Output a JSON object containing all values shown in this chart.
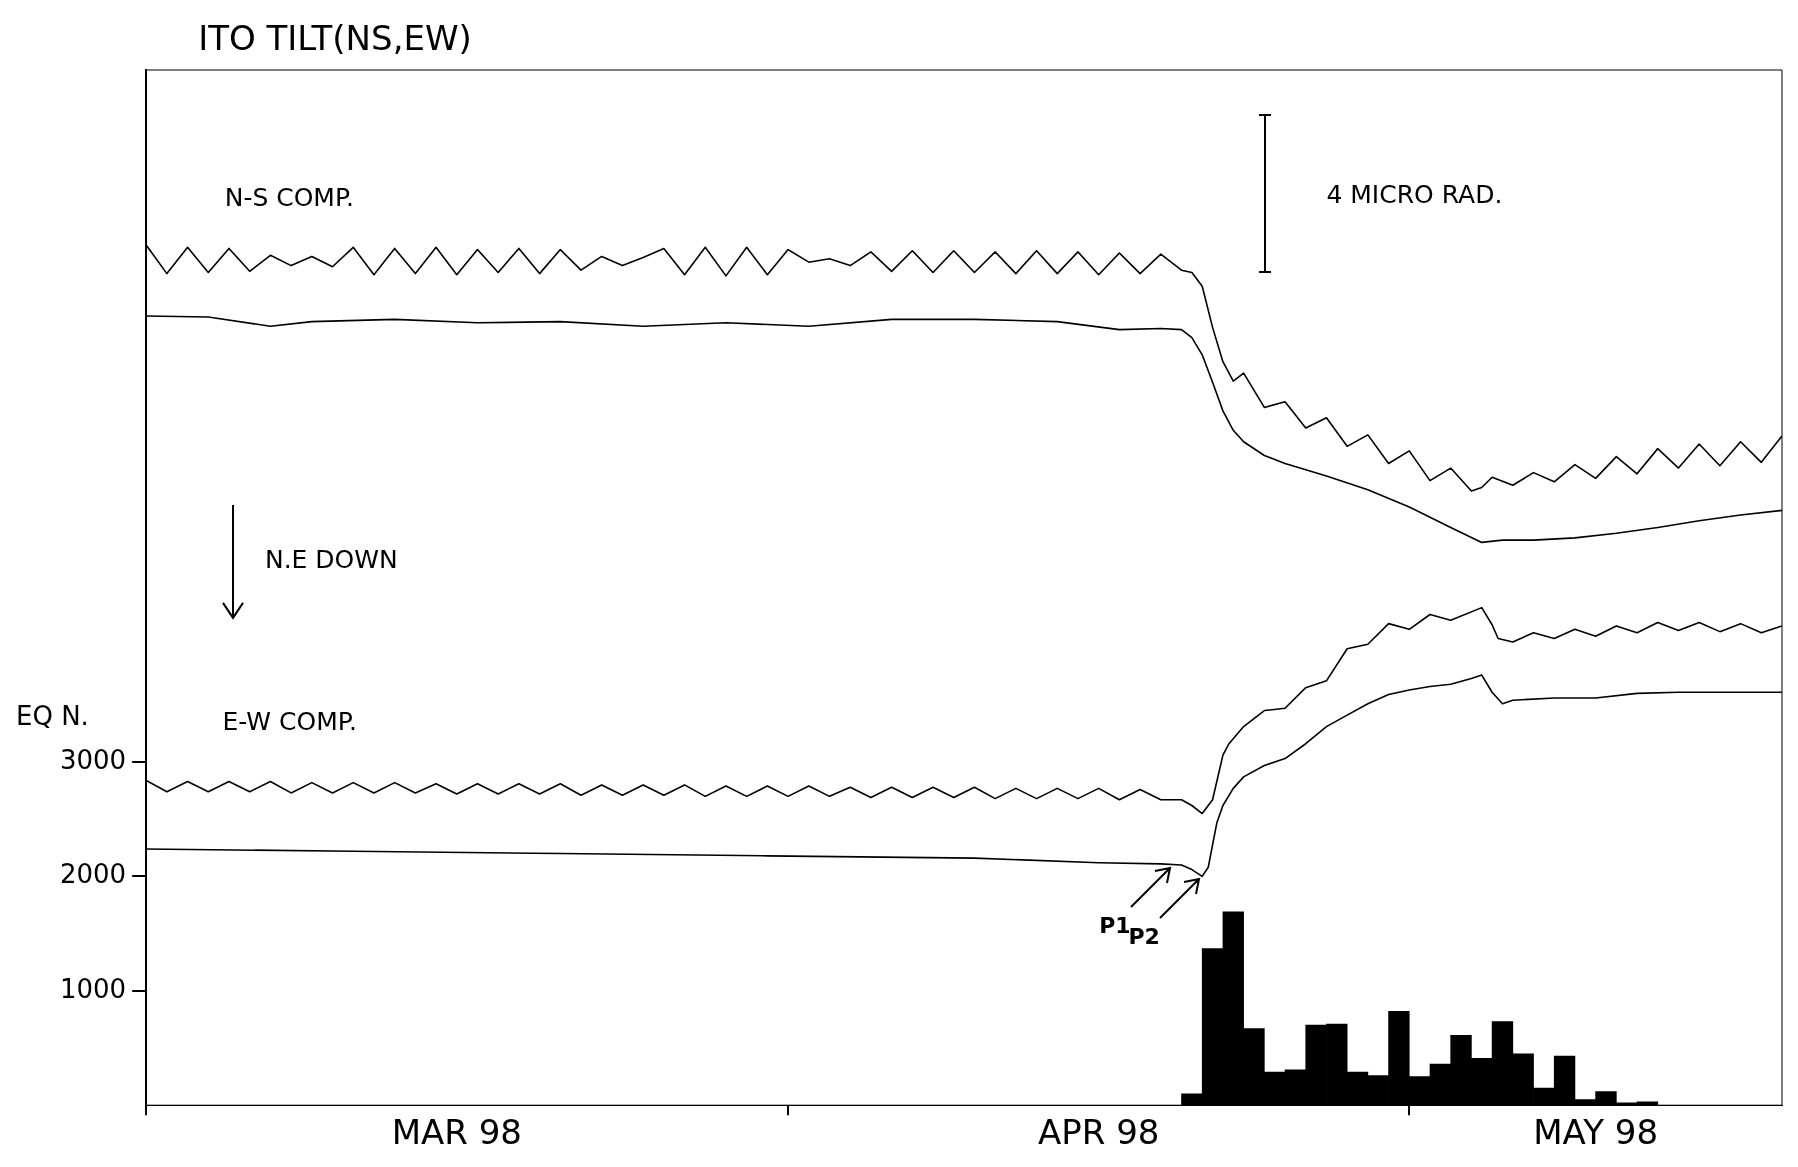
{
  "chart_data": {
    "type": "line",
    "title": "ITO TILT(NS,EW)",
    "ylabel": "EQ N.",
    "xlim": [
      "1998-03-01",
      "1998-05-19"
    ],
    "xticks": [
      {
        "value": "1998-03-01",
        "label": null
      },
      {
        "value": "1998-03-16",
        "label": "MAR 98"
      },
      {
        "value": "1998-04-01",
        "label": null
      },
      {
        "value": "1998-04-16",
        "label": "APR 98"
      },
      {
        "value": "1998-05-01",
        "label": null
      },
      {
        "value": "1998-05-10",
        "label": "MAY 98"
      }
    ],
    "ylim": [
      0,
      9050
    ],
    "yticks": [
      1000,
      2000,
      3000
    ],
    "grid": false,
    "legend": false,
    "annotations": [
      "N-S COMP.",
      "4 MICRO RAD.",
      "N.E DOWN",
      "E-W COMP.",
      {
        "text": "P1",
        "x": "1998-04-19T14:00",
        "y": 2100
      },
      {
        "text": "P2",
        "x": "1998-04-21",
        "y": 2000
      }
    ],
    "series": [
      {
        "color": "#000000",
        "x": [
          "1998-03-01",
          "1998-03-02",
          "1998-03-03",
          "1998-03-04",
          "1998-03-05",
          "1998-03-06",
          "1998-03-07",
          "1998-03-08",
          "1998-03-09",
          "1998-03-10",
          "1998-03-11",
          "1998-03-12",
          "1998-03-13",
          "1998-03-14",
          "1998-03-15",
          "1998-03-16",
          "1998-03-17",
          "1998-03-18",
          "1998-03-19",
          "1998-03-20",
          "1998-03-21",
          "1998-03-22",
          "1998-03-23",
          "1998-03-24",
          "1998-03-25",
          "1998-03-26",
          "1998-03-27",
          "1998-03-28",
          "1998-03-29",
          "1998-03-30",
          "1998-03-31",
          "1998-04-01",
          "1998-04-02",
          "1998-04-03",
          "1998-04-04",
          "1998-04-05",
          "1998-04-06",
          "1998-04-07",
          "1998-04-08",
          "1998-04-09",
          "1998-04-10",
          "1998-04-11",
          "1998-04-12",
          "1998-04-13",
          "1998-04-14",
          "1998-04-15",
          "1998-04-16",
          "1998-04-17",
          "1998-04-18",
          "1998-04-19",
          "1998-04-20",
          "1998-04-20T12:00",
          "1998-04-21",
          "1998-04-21T12:00",
          "1998-04-22",
          "1998-04-22T12:00",
          "1998-04-23",
          "1998-04-24",
          "1998-04-25",
          "1998-04-26",
          "1998-04-27",
          "1998-04-28",
          "1998-04-29",
          "1998-04-30",
          "1998-05-01",
          "1998-05-02",
          "1998-05-03",
          "1998-05-04",
          "1998-05-04T12:00",
          "1998-05-05",
          "1998-05-06",
          "1998-05-07",
          "1998-05-08",
          "1998-05-09",
          "1998-05-10",
          "1998-05-11",
          "1998-05-12",
          "1998-05-13",
          "1998-05-14",
          "1998-05-15",
          "1998-05-16",
          "1998-05-17",
          "1998-05-18",
          "1998-05-19"
        ],
        "values": [
          7520,
          7270,
          7500,
          7280,
          7490,
          7290,
          7430,
          7340,
          7420,
          7330,
          7500,
          7260,
          7490,
          7270,
          7500,
          7260,
          7480,
          7280,
          7490,
          7270,
          7480,
          7300,
          7420,
          7340,
          7410,
          7490,
          7260,
          7500,
          7250,
          7500,
          7260,
          7480,
          7370,
          7400,
          7340,
          7460,
          7290,
          7470,
          7280,
          7470,
          7280,
          7460,
          7270,
          7470,
          7270,
          7460,
          7260,
          7450,
          7270,
          7440,
          7300,
          7280,
          7160,
          6800,
          6500,
          6330,
          6400,
          6100,
          6150,
          5920,
          6010,
          5760,
          5860,
          5610,
          5720,
          5460,
          5570,
          5370,
          5400,
          5490,
          5420,
          5530,
          5450,
          5600,
          5480,
          5670,
          5520,
          5740,
          5570,
          5780,
          5590,
          5800,
          5620,
          5850
        ]
      },
      {
        "color": "#000000",
        "x": [
          "1998-03-01",
          "1998-03-04",
          "1998-03-07",
          "1998-03-09",
          "1998-03-13",
          "1998-03-17",
          "1998-03-21",
          "1998-03-25",
          "1998-03-29",
          "1998-04-02",
          "1998-04-06",
          "1998-04-10",
          "1998-04-14",
          "1998-04-17",
          "1998-04-19",
          "1998-04-20",
          "1998-04-20T12:00",
          "1998-04-21",
          "1998-04-21T12:00",
          "1998-04-22",
          "1998-04-22T12:00",
          "1998-04-23",
          "1998-04-24",
          "1998-04-25",
          "1998-04-27",
          "1998-04-29",
          "1998-05-01",
          "1998-05-03",
          "1998-05-04T12:00",
          "1998-05-05T12:00",
          "1998-05-07",
          "1998-05-09",
          "1998-05-11",
          "1998-05-13",
          "1998-05-15",
          "1998-05-17",
          "1998-05-19"
        ],
        "values": [
          6900,
          6890,
          6810,
          6850,
          6870,
          6840,
          6850,
          6810,
          6840,
          6810,
          6870,
          6870,
          6850,
          6780,
          6790,
          6780,
          6710,
          6560,
          6320,
          6070,
          5900,
          5800,
          5680,
          5610,
          5500,
          5380,
          5230,
          5050,
          4920,
          4940,
          4940,
          4960,
          5000,
          5050,
          5110,
          5160,
          5200
        ]
      },
      {
        "color": "#000000",
        "x": [
          "1998-03-01",
          "1998-03-02",
          "1998-03-03",
          "1998-03-04",
          "1998-03-05",
          "1998-03-06",
          "1998-03-07",
          "1998-03-08",
          "1998-03-09",
          "1998-03-10",
          "1998-03-11",
          "1998-03-12",
          "1998-03-13",
          "1998-03-14",
          "1998-03-15",
          "1998-03-16",
          "1998-03-17",
          "1998-03-18",
          "1998-03-19",
          "1998-03-20",
          "1998-03-21",
          "1998-03-22",
          "1998-03-23",
          "1998-03-24",
          "1998-03-25",
          "1998-03-26",
          "1998-03-27",
          "1998-03-28",
          "1998-03-29",
          "1998-03-30",
          "1998-03-31",
          "1998-04-01",
          "1998-04-02",
          "1998-04-03",
          "1998-04-04",
          "1998-04-05",
          "1998-04-06",
          "1998-04-07",
          "1998-04-08",
          "1998-04-09",
          "1998-04-10",
          "1998-04-11",
          "1998-04-12",
          "1998-04-13",
          "1998-04-14",
          "1998-04-15",
          "1998-04-16",
          "1998-04-17",
          "1998-04-18",
          "1998-04-19",
          "1998-04-20",
          "1998-04-20T12:00",
          "1998-04-21",
          "1998-04-21T12:00",
          "1998-04-22",
          "1998-04-22T07:00",
          "1998-04-23",
          "1998-04-24",
          "1998-04-25",
          "1998-04-26",
          "1998-04-27",
          "1998-04-28",
          "1998-04-29",
          "1998-04-30",
          "1998-05-01",
          "1998-05-02",
          "1998-05-03",
          "1998-05-04T12:00",
          "1998-05-05",
          "1998-05-05T07:00",
          "1998-05-06",
          "1998-05-07",
          "1998-05-08",
          "1998-05-09",
          "1998-05-10",
          "1998-05-11",
          "1998-05-12",
          "1998-05-13",
          "1998-05-14",
          "1998-05-15",
          "1998-05-16",
          "1998-05-17",
          "1998-05-18",
          "1998-05-19"
        ],
        "values": [
          2840,
          2740,
          2830,
          2740,
          2830,
          2740,
          2830,
          2730,
          2820,
          2730,
          2820,
          2730,
          2820,
          2730,
          2810,
          2720,
          2810,
          2720,
          2810,
          2720,
          2810,
          2710,
          2800,
          2710,
          2800,
          2710,
          2800,
          2700,
          2790,
          2700,
          2790,
          2700,
          2790,
          2700,
          2780,
          2690,
          2780,
          2690,
          2780,
          2690,
          2780,
          2680,
          2770,
          2680,
          2770,
          2680,
          2770,
          2670,
          2760,
          2670,
          2670,
          2620,
          2550,
          2670,
          3060,
          3160,
          3310,
          3450,
          3470,
          3650,
          3710,
          3990,
          4030,
          4210,
          4160,
          4290,
          4240,
          4350,
          4200,
          4080,
          4050,
          4130,
          4080,
          4160,
          4100,
          4190,
          4130,
          4220,
          4150,
          4220,
          4140,
          4210,
          4130,
          4190
        ]
      },
      {
        "color": "#000000",
        "x": [
          "1998-03-01",
          "1998-03-11",
          "1998-03-21",
          "1998-03-31",
          "1998-04-10",
          "1998-04-16",
          "1998-04-19",
          "1998-04-20",
          "1998-04-20T12:00",
          "1998-04-21",
          "1998-04-21T07:00",
          "1998-04-21T17:00",
          "1998-04-22",
          "1998-04-22T12:00",
          "1998-04-23",
          "1998-04-24",
          "1998-04-25",
          "1998-04-26",
          "1998-04-27",
          "1998-04-28",
          "1998-04-29",
          "1998-04-30",
          "1998-05-01",
          "1998-05-02",
          "1998-05-03",
          "1998-05-04",
          "1998-05-04T12:00",
          "1998-05-05",
          "1998-05-05T12:00",
          "1998-05-06",
          "1998-05-08",
          "1998-05-10",
          "1998-05-12",
          "1998-05-14",
          "1998-05-19"
        ],
        "values": [
          2240,
          2220,
          2200,
          2180,
          2160,
          2120,
          2110,
          2100,
          2060,
          2000,
          2080,
          2470,
          2620,
          2770,
          2870,
          2970,
          3030,
          3160,
          3310,
          3410,
          3510,
          3590,
          3630,
          3660,
          3680,
          3730,
          3760,
          3610,
          3510,
          3540,
          3560,
          3560,
          3600,
          3610,
          3610
        ]
      },
      {
        "type": "histogram",
        "color": "#000000",
        "bins": [
          "1998-04-20",
          "1998-04-21",
          "1998-04-22",
          "1998-04-23",
          "1998-04-24",
          "1998-04-25",
          "1998-04-26",
          "1998-04-27",
          "1998-04-28",
          "1998-04-29",
          "1998-04-30",
          "1998-05-01",
          "1998-05-02",
          "1998-05-03",
          "1998-05-04",
          "1998-05-05",
          "1998-05-06",
          "1998-05-07",
          "1998-05-08",
          "1998-05-09",
          "1998-05-10",
          "1998-05-11",
          "1998-05-12",
          "1998-05-13"
        ],
        "values": [
          100,
          1370,
          1690,
          670,
          290,
          310,
          700,
          710,
          290,
          260,
          820,
          250,
          360,
          610,
          410,
          730,
          450,
          150,
          430,
          50,
          120,
          20,
          30
        ]
      }
    ]
  }
}
